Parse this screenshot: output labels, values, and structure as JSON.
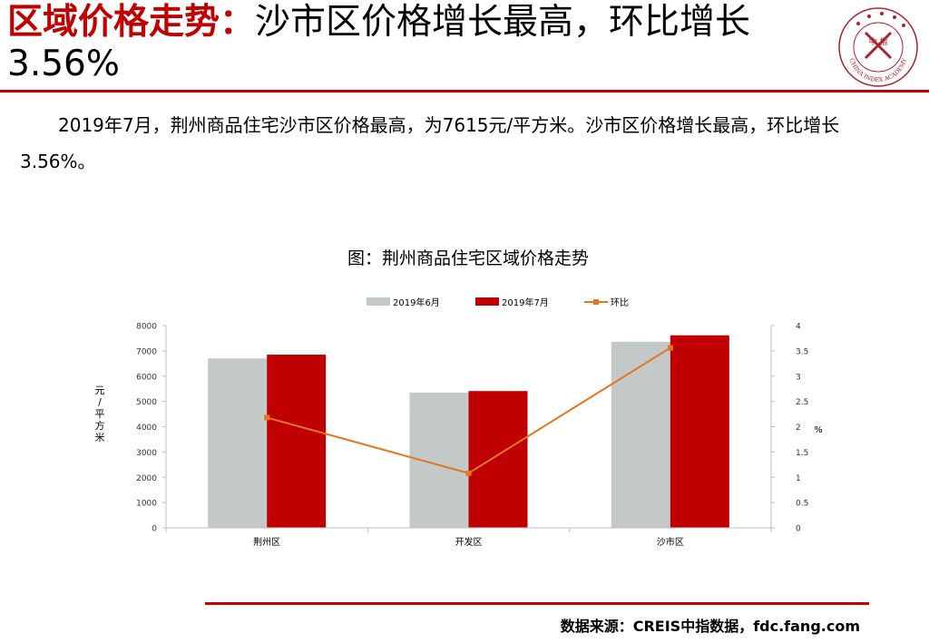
{
  "header": {
    "title_highlight": "区域价格走势：",
    "title_rest": "沙市区价格增长最高，环比增长3.56%",
    "logo_text": "中 指",
    "logo_ring_text": "CHINA INDEX ACADEMY"
  },
  "summary": {
    "text": "2019年7月，荆州商品住宅沙市区价格最高，为7615元/平方米。沙市区价格增长最高，环比增长3.56%。"
  },
  "chart_data": {
    "type": "bar",
    "title": "图：荆州商品住宅区域价格走势",
    "categories": [
      "荆州区",
      "开发区",
      "沙市区"
    ],
    "series": [
      {
        "name": "2019年6月",
        "type": "bar",
        "axis": "left",
        "color": "#c3c9c8",
        "values": [
          6700,
          5350,
          7360
        ]
      },
      {
        "name": "2019年7月",
        "type": "bar",
        "axis": "left",
        "color": "#c00000",
        "values": [
          6850,
          5410,
          7615
        ]
      },
      {
        "name": "环比",
        "type": "line",
        "axis": "right",
        "color": "#e2781e",
        "values": [
          2.18,
          1.08,
          3.56
        ]
      }
    ],
    "ylabel": "元/平方米",
    "y2label": "%",
    "ylim": [
      0,
      8000
    ],
    "y2lim": [
      0,
      4
    ],
    "yticks": [
      "0",
      "1000",
      "2000",
      "3000",
      "4000",
      "5000",
      "6000",
      "7000",
      "8000"
    ],
    "y2ticks": [
      "0",
      "0.5",
      "1",
      "1.5",
      "2",
      "2.5",
      "3",
      "3.5",
      "4"
    ],
    "grid": false,
    "legend": "top"
  },
  "footer": {
    "source": "数据来源：CREIS中指数据，fdc.fang.com"
  }
}
